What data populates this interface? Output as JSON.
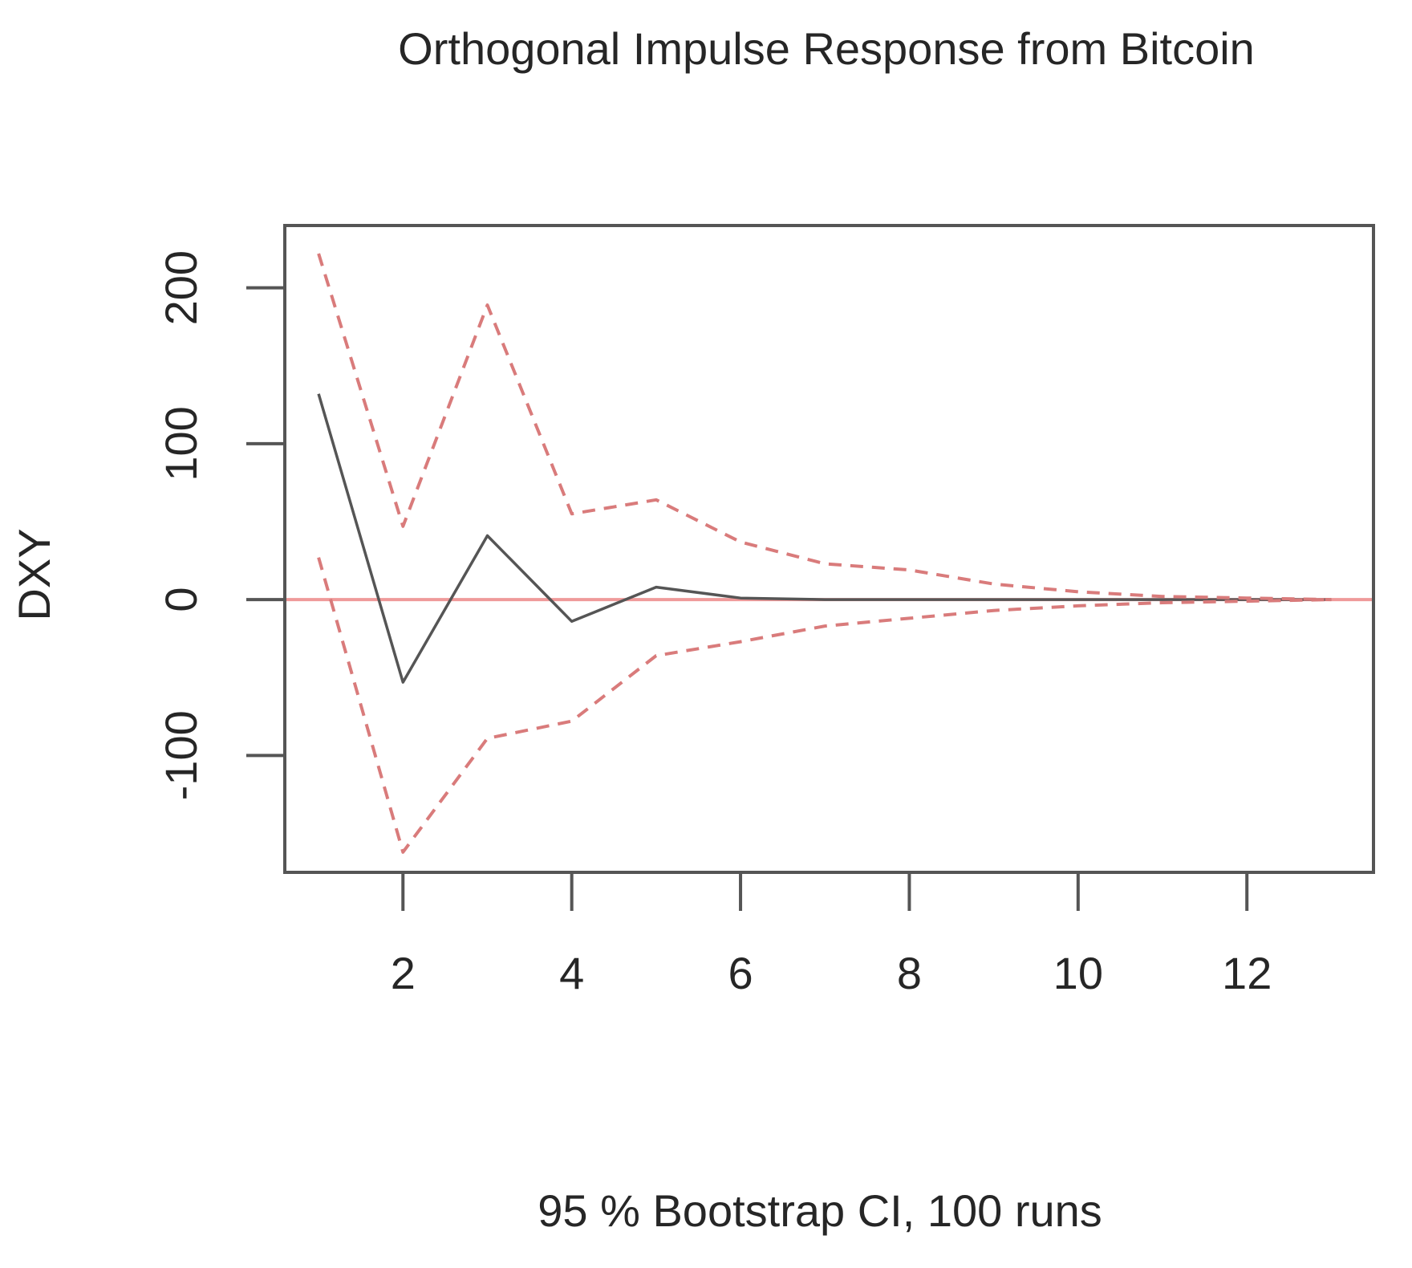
{
  "chart_data": {
    "type": "line",
    "title": "Orthogonal Impulse Response from Bitcoin",
    "xlabel": "95 % Bootstrap CI,  100 runs",
    "ylabel": "DXY",
    "xlim": [
      0.6,
      13.5
    ],
    "ylim": [
      -175,
      240
    ],
    "x_ticks": [
      2,
      4,
      6,
      8,
      10,
      12
    ],
    "y_ticks": [
      -100,
      0,
      100,
      200
    ],
    "grid": false,
    "legend": "none",
    "x": [
      1,
      2,
      3,
      4,
      5,
      6,
      7,
      8,
      9,
      10,
      11,
      12,
      13
    ],
    "series": [
      {
        "role": "response",
        "style": "solid",
        "color": "#555555",
        "values": [
          132,
          -53,
          41,
          -14,
          8,
          1,
          0,
          0,
          0,
          0,
          0,
          0,
          0
        ]
      },
      {
        "role": "upper",
        "style": "dashed",
        "color": "#d97b7b",
        "values": [
          222,
          47,
          189,
          55,
          64,
          37,
          23,
          19,
          10,
          5,
          2,
          1,
          0
        ]
      },
      {
        "role": "lower",
        "style": "dashed",
        "color": "#d97b7b",
        "values": [
          27,
          -162,
          -89,
          -78,
          -36,
          -27,
          -17,
          -12,
          -7,
          -4,
          -2,
          -1,
          0
        ]
      }
    ],
    "zero_line": {
      "y": 0,
      "color": "#ef9a9a"
    },
    "frame_color": "#555555"
  }
}
